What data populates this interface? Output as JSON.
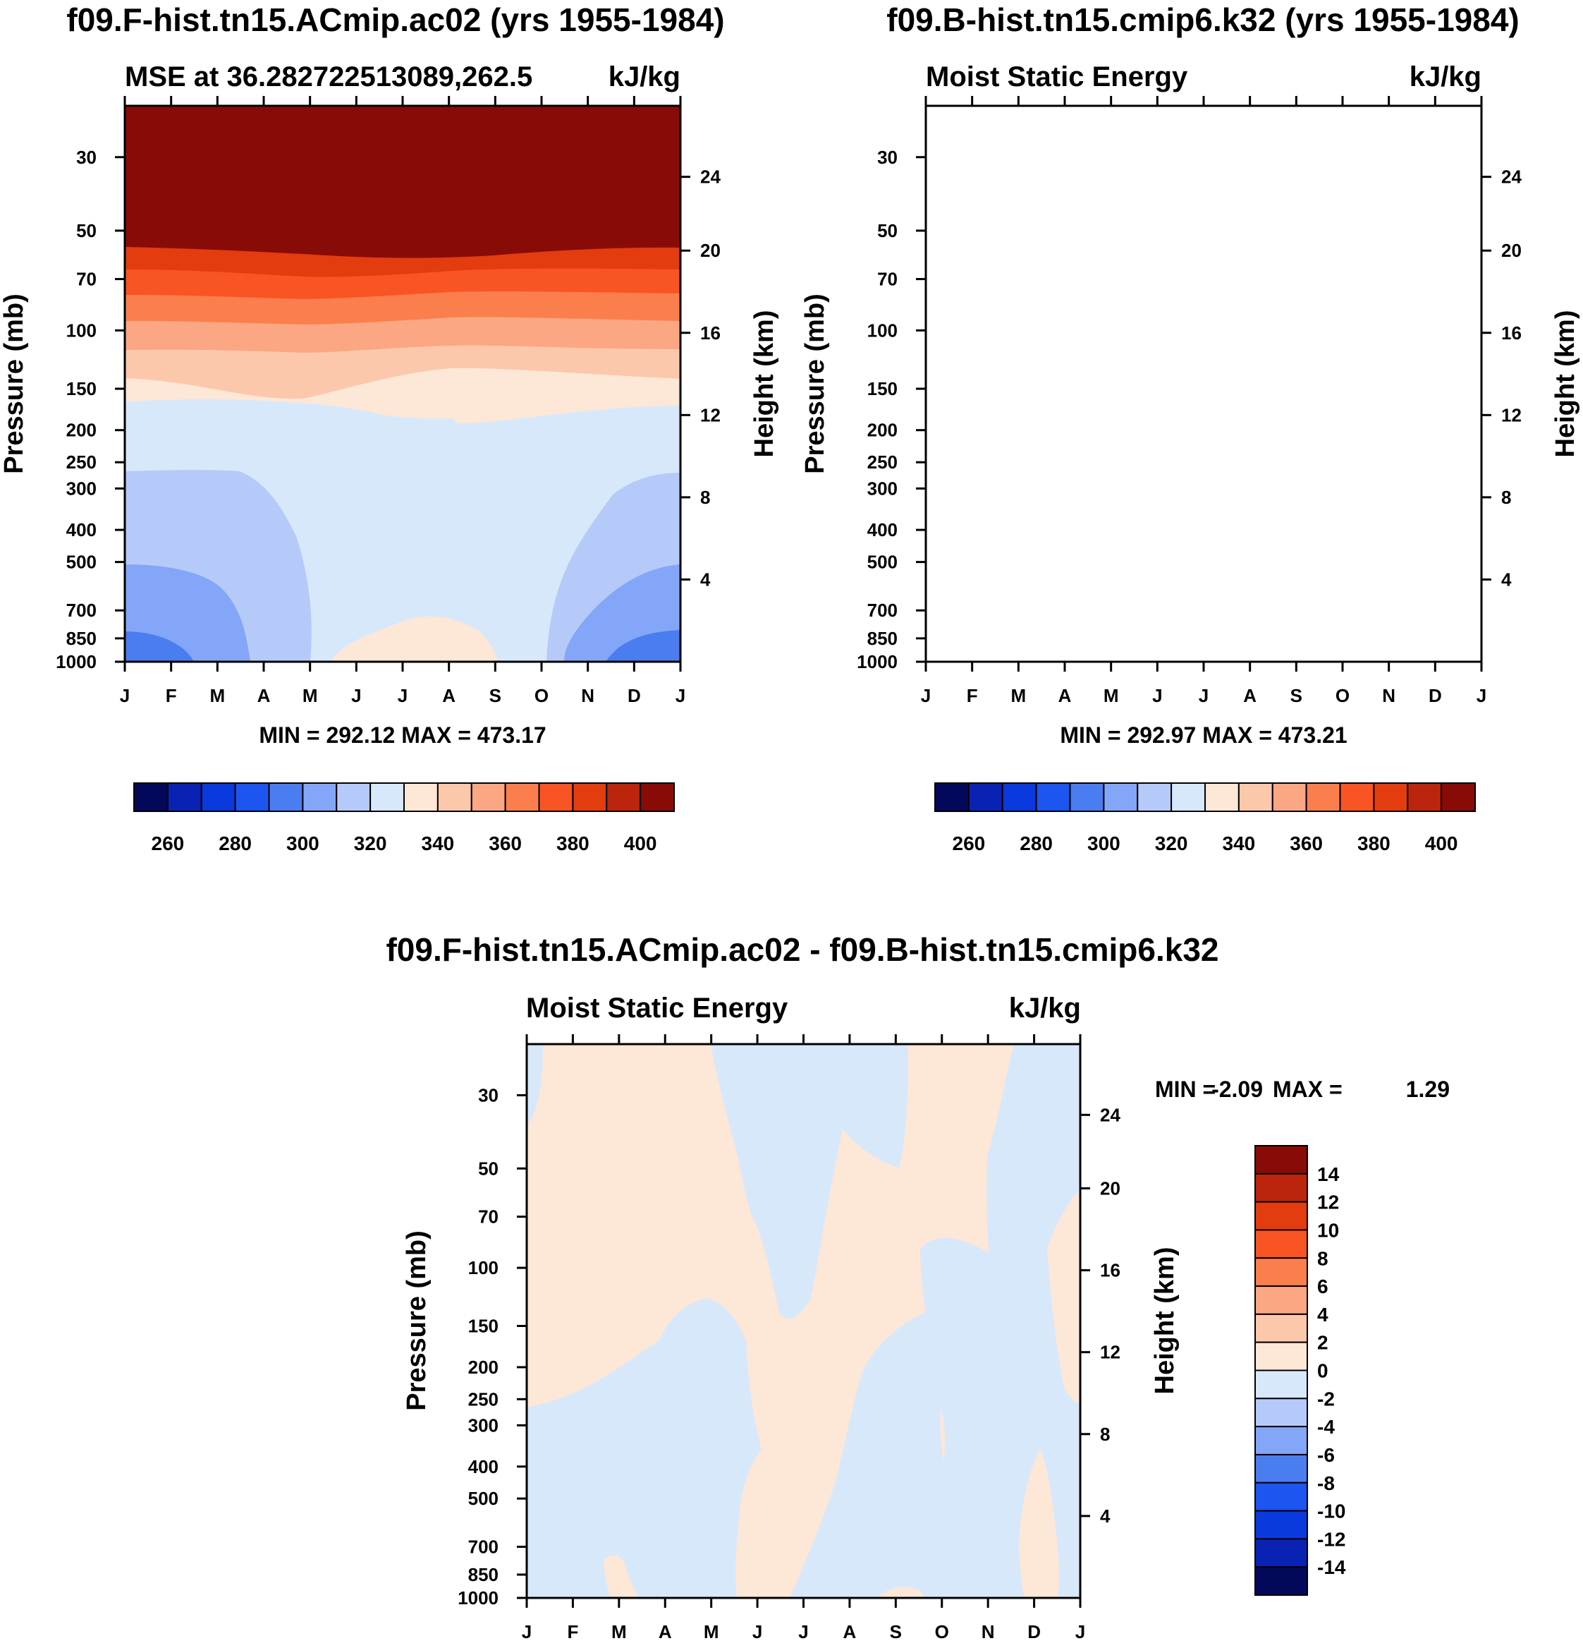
{
  "chart_data": [
    {
      "type": "contour",
      "suptitle": "f09.F-hist.tn15.ACmip.ac02 (yrs 1955-1984)",
      "title_left": "MSE at 36.282722513089,262.5",
      "title_right": "kJ/kg",
      "ylabel": "Pressure (mb)",
      "ylabel_right": "Height (km)",
      "months": [
        "J",
        "F",
        "M",
        "A",
        "M",
        "J",
        "J",
        "A",
        "S",
        "O",
        "N",
        "D",
        "J"
      ],
      "pressure_ticks": [
        "30",
        "50",
        "70",
        "100",
        "150",
        "200",
        "250",
        "300",
        "400",
        "500",
        "700",
        "850",
        "1000"
      ],
      "height_ticks": [
        "24",
        "20",
        "16",
        "12",
        "8",
        "4"
      ],
      "stats": "MIN = 292.12 MAX = 473.17",
      "colorbar_labels": [
        "260",
        "280",
        "300",
        "320",
        "340",
        "360",
        "380",
        "400"
      ],
      "colorbar_orientation": "horizontal"
    },
    {
      "type": "contour",
      "suptitle": "f09.B-hist.tn15.cmip6.k32 (yrs 1955-1984)",
      "title_left": "Moist Static Energy",
      "title_right": "kJ/kg",
      "ylabel": "Pressure (mb)",
      "ylabel_right": "Height (km)",
      "months": [
        "J",
        "F",
        "M",
        "A",
        "M",
        "J",
        "J",
        "A",
        "S",
        "O",
        "N",
        "D",
        "J"
      ],
      "pressure_ticks": [
        "30",
        "50",
        "70",
        "100",
        "150",
        "200",
        "250",
        "300",
        "400",
        "500",
        "700",
        "850",
        "1000"
      ],
      "height_ticks": [
        "24",
        "20",
        "16",
        "12",
        "8",
        "4"
      ],
      "stats": "MIN = 292.97 MAX = 473.21",
      "colorbar_labels": [
        "260",
        "280",
        "300",
        "320",
        "340",
        "360",
        "380",
        "400"
      ],
      "colorbar_orientation": "horizontal"
    },
    {
      "type": "contour",
      "suptitle": "f09.F-hist.tn15.ACmip.ac02 - f09.B-hist.tn15.cmip6.k32",
      "title_left": "Moist Static Energy",
      "title_right": "kJ/kg",
      "ylabel": "Pressure (mb)",
      "ylabel_right": "Height (km)",
      "months": [
        "J",
        "F",
        "M",
        "A",
        "M",
        "J",
        "J",
        "A",
        "S",
        "O",
        "N",
        "D",
        "J"
      ],
      "pressure_ticks": [
        "30",
        "50",
        "70",
        "100",
        "150",
        "200",
        "250",
        "300",
        "400",
        "500",
        "700",
        "850",
        "1000"
      ],
      "height_ticks": [
        "24",
        "20",
        "16",
        "12",
        "8",
        "4"
      ],
      "stats_min_label": "MIN =",
      "stats_min": "-2.09",
      "stats_max_label": "MAX =",
      "stats_max": "1.29",
      "colorbar_labels": [
        "14",
        "12",
        "10",
        "8",
        "6",
        "4",
        "2",
        "0",
        "-2",
        "-4",
        "-6",
        "-8",
        "-10",
        "-12",
        "-14"
      ],
      "colorbar_orientation": "vertical"
    }
  ],
  "palette": {
    "mse": [
      "#04085a",
      "#0a22b4",
      "#0a3ade",
      "#1c55ef",
      "#4a7df0",
      "#84a6f8",
      "#b5caf8",
      "#d8e8fb",
      "#fde7d7",
      "#fcc8ac",
      "#fba784",
      "#fb7f4d",
      "#f95423",
      "#e33c0f",
      "#bc250d",
      "#890b08"
    ],
    "diff": [
      "#890b08",
      "#bc250d",
      "#e33c0f",
      "#f95423",
      "#fb7f4d",
      "#fba784",
      "#fcc8ac",
      "#fde7d7",
      "#d8e8fb",
      "#b5caf8",
      "#84a6f8",
      "#4a7df0",
      "#1c55ef",
      "#0a3ade",
      "#0a22b4",
      "#04085a"
    ]
  }
}
